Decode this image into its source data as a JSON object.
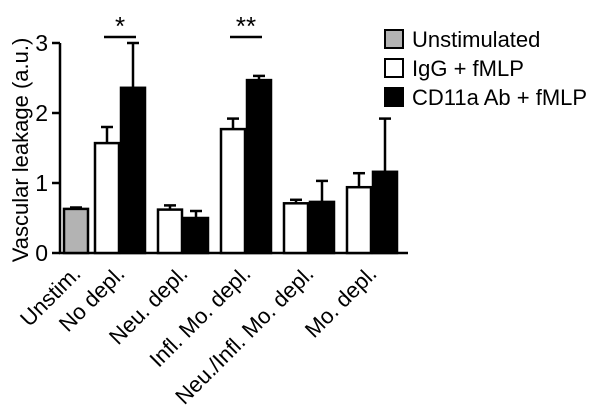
{
  "chart_data": {
    "type": "bar",
    "title": "",
    "xlabel": "",
    "ylabel": "Vascular leakage (a.u.)",
    "ylim": [
      0,
      3
    ],
    "yticks": [
      "0",
      "1",
      "2",
      "3"
    ],
    "grid": false,
    "legend_position": "top-right",
    "categories": [
      "Unstim.",
      "No depl.",
      "Neu. depl.",
      "Infl. Mo. depl.",
      "Neu./Infl. Mo. depl.",
      "Mo. depl."
    ],
    "series": [
      {
        "name": "Unstimulated",
        "color": "#b3b3b3",
        "values": [
          0.63,
          null,
          null,
          null,
          null,
          null
        ],
        "errors": [
          0.02,
          null,
          null,
          null,
          null,
          null
        ]
      },
      {
        "name": "IgG + fMLP",
        "color": "#ffffff",
        "values": [
          null,
          1.57,
          0.62,
          1.77,
          0.71,
          0.94
        ],
        "errors": [
          null,
          0.23,
          0.06,
          0.15,
          0.05,
          0.2
        ]
      },
      {
        "name": "CD11a Ab + fMLP",
        "color": "#000000",
        "values": [
          null,
          2.36,
          0.5,
          2.47,
          0.73,
          1.16
        ],
        "errors": [
          null,
          0.64,
          0.1,
          0.06,
          0.3,
          0.76
        ]
      }
    ],
    "annotations": [
      {
        "text": "*",
        "category": "No depl."
      },
      {
        "text": "**",
        "category": "Infl. Mo. depl."
      }
    ]
  }
}
